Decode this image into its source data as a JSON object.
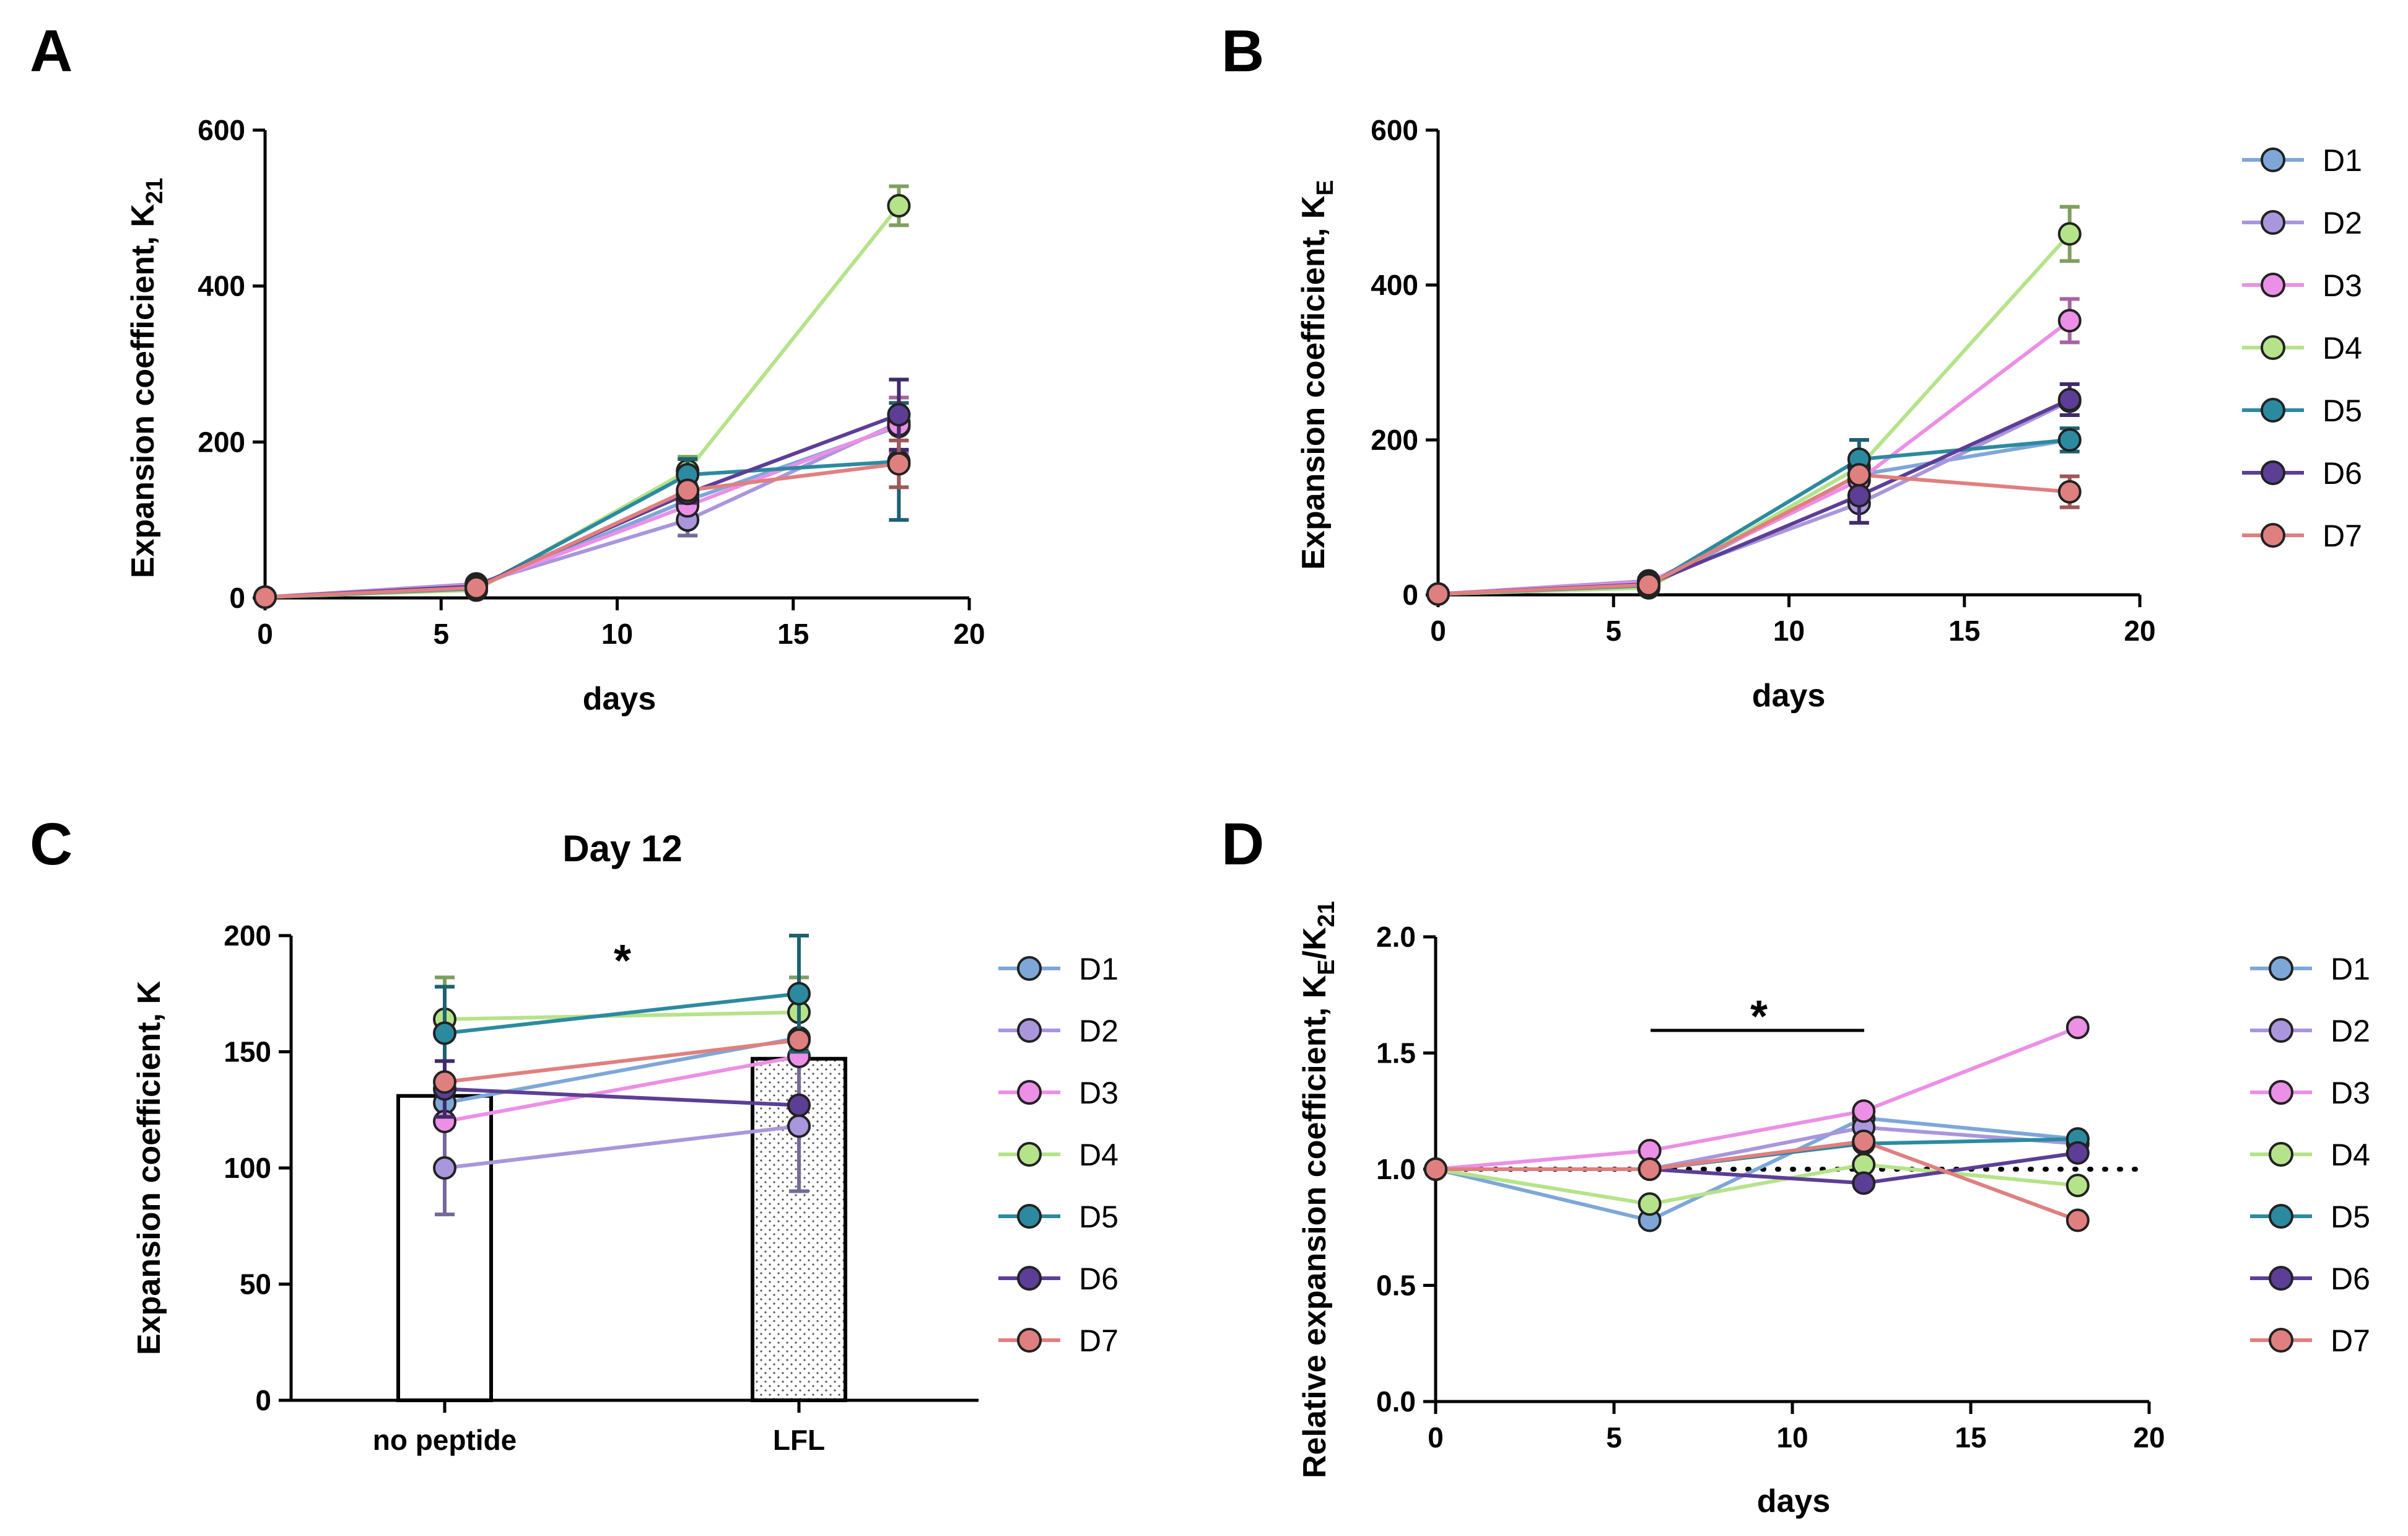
{
  "colors": {
    "D1": "#7ea7d8",
    "D2": "#a996dc",
    "D3": "#ec8fe6",
    "D4": "#b5e389",
    "D5": "#2c8aa0",
    "D6": "#5c3e96",
    "D7": "#e07f7f"
  },
  "chart_data": [
    {
      "id": "A",
      "letter": "A",
      "type": "line",
      "xlabel": "days",
      "ylabel_main": "Expansion coefficient, K",
      "ylabel_sub": "21",
      "xlim": [
        0,
        20
      ],
      "ylim": [
        0,
        600
      ],
      "xticks": [
        0,
        5,
        10,
        15,
        20
      ],
      "yticks": [
        0,
        200,
        400,
        600
      ],
      "x": [
        0,
        6,
        12,
        18
      ],
      "series": [
        {
          "name": "D1",
          "values": [
            1,
            14,
            125,
            220
          ],
          "err": [
            0,
            0,
            0,
            0
          ]
        },
        {
          "name": "D2",
          "values": [
            1,
            18,
            100,
            225
          ],
          "err": [
            0,
            0,
            20,
            0
          ]
        },
        {
          "name": "D3",
          "values": [
            1,
            16,
            118,
            222
          ],
          "err": [
            0,
            0,
            0,
            35
          ]
        },
        {
          "name": "D4",
          "values": [
            1,
            10,
            163,
            503
          ],
          "err": [
            0,
            0,
            18,
            25
          ]
        },
        {
          "name": "D5",
          "values": [
            1,
            12,
            158,
            175
          ],
          "err": [
            0,
            0,
            20,
            75
          ]
        },
        {
          "name": "D6",
          "values": [
            1,
            15,
            134,
            235
          ],
          "err": [
            0,
            0,
            12,
            45
          ]
        },
        {
          "name": "D7",
          "values": [
            1,
            13,
            138,
            172
          ],
          "err": [
            0,
            0,
            0,
            30
          ]
        }
      ]
    },
    {
      "id": "B",
      "letter": "B",
      "type": "line",
      "xlabel": "days",
      "ylabel_main": "Expansion coefficient, K",
      "ylabel_sub": "E",
      "xlim": [
        0,
        20
      ],
      "ylim": [
        0,
        600
      ],
      "xticks": [
        0,
        5,
        10,
        15,
        20
      ],
      "yticks": [
        0,
        200,
        400,
        600
      ],
      "x": [
        0,
        6,
        12,
        18
      ],
      "series": [
        {
          "name": "D1",
          "values": [
            1,
            10,
            155,
            200
          ],
          "err": [
            0,
            0,
            0,
            0
          ]
        },
        {
          "name": "D2",
          "values": [
            1,
            18,
            118,
            250
          ],
          "err": [
            0,
            0,
            0,
            0
          ]
        },
        {
          "name": "D3",
          "values": [
            1,
            16,
            148,
            354
          ],
          "err": [
            0,
            0,
            0,
            28
          ]
        },
        {
          "name": "D4",
          "values": [
            1,
            9,
            165,
            466
          ],
          "err": [
            0,
            0,
            0,
            35
          ]
        },
        {
          "name": "D5",
          "values": [
            1,
            12,
            175,
            200
          ],
          "err": [
            0,
            0,
            25,
            15
          ]
        },
        {
          "name": "D6",
          "values": [
            1,
            14,
            128,
            252
          ],
          "err": [
            0,
            0,
            35,
            20
          ]
        },
        {
          "name": "D7",
          "values": [
            1,
            13,
            155,
            133
          ],
          "err": [
            0,
            0,
            0,
            20
          ]
        }
      ],
      "legend": [
        "D1",
        "D2",
        "D3",
        "D4",
        "D5",
        "D6",
        "D7"
      ]
    },
    {
      "id": "C",
      "letter": "C",
      "type": "bar",
      "title": "Day 12",
      "annotation": "*",
      "xlabel": "",
      "ylabel": "Expansion coefficient, K",
      "ylim": [
        0,
        200
      ],
      "yticks": [
        0,
        50,
        100,
        150,
        200
      ],
      "categories": [
        "no peptide",
        "LFL"
      ],
      "bar_values": [
        131,
        147
      ],
      "series": [
        {
          "name": "D1",
          "values": [
            128,
            156
          ],
          "err": [
            0,
            0
          ]
        },
        {
          "name": "D2",
          "values": [
            100,
            118
          ],
          "err": [
            20,
            28
          ]
        },
        {
          "name": "D3",
          "values": [
            120,
            148
          ],
          "err": [
            0,
            0
          ]
        },
        {
          "name": "D4",
          "values": [
            164,
            167
          ],
          "err": [
            18,
            15
          ]
        },
        {
          "name": "D5",
          "values": [
            158,
            175
          ],
          "err": [
            20,
            25
          ]
        },
        {
          "name": "D6",
          "values": [
            134,
            127
          ],
          "err": [
            12,
            0
          ]
        },
        {
          "name": "D7",
          "values": [
            137,
            155
          ],
          "err": [
            0,
            0
          ]
        }
      ],
      "legend": [
        "D1",
        "D2",
        "D3",
        "D4",
        "D5",
        "D6",
        "D7"
      ]
    },
    {
      "id": "D",
      "letter": "D",
      "type": "line",
      "annotation": "*",
      "xlabel": "days",
      "ylabel_main": "Relative expansion coefficient, K",
      "ylabel_sub1": "E",
      "ylabel_mid": "/K",
      "ylabel_sub2": "21",
      "xlim": [
        0,
        20
      ],
      "ylim": [
        0,
        2
      ],
      "xticks": [
        0,
        5,
        10,
        15,
        20
      ],
      "yticks": [
        0.0,
        0.5,
        1.0,
        1.5,
        2.0
      ],
      "ytick_labels": [
        "0.0",
        "0.5",
        "1.0",
        "1.5",
        "2.0"
      ],
      "reference_line": 1.0,
      "x": [
        0,
        6,
        12,
        18
      ],
      "series": [
        {
          "name": "D1",
          "values": [
            1.0,
            0.78,
            1.22,
            1.13
          ]
        },
        {
          "name": "D2",
          "values": [
            1.0,
            1.0,
            1.18,
            1.11
          ]
        },
        {
          "name": "D3",
          "values": [
            1.0,
            1.08,
            1.25,
            1.61
          ]
        },
        {
          "name": "D4",
          "values": [
            1.0,
            0.85,
            1.02,
            0.93
          ]
        },
        {
          "name": "D5",
          "values": [
            1.0,
            1.0,
            1.11,
            1.13
          ]
        },
        {
          "name": "D6",
          "values": [
            1.0,
            1.0,
            0.94,
            1.07
          ]
        },
        {
          "name": "D7",
          "values": [
            1.0,
            1.0,
            1.12,
            0.78
          ]
        }
      ],
      "legend": [
        "D1",
        "D2",
        "D3",
        "D4",
        "D5",
        "D6",
        "D7"
      ]
    }
  ]
}
